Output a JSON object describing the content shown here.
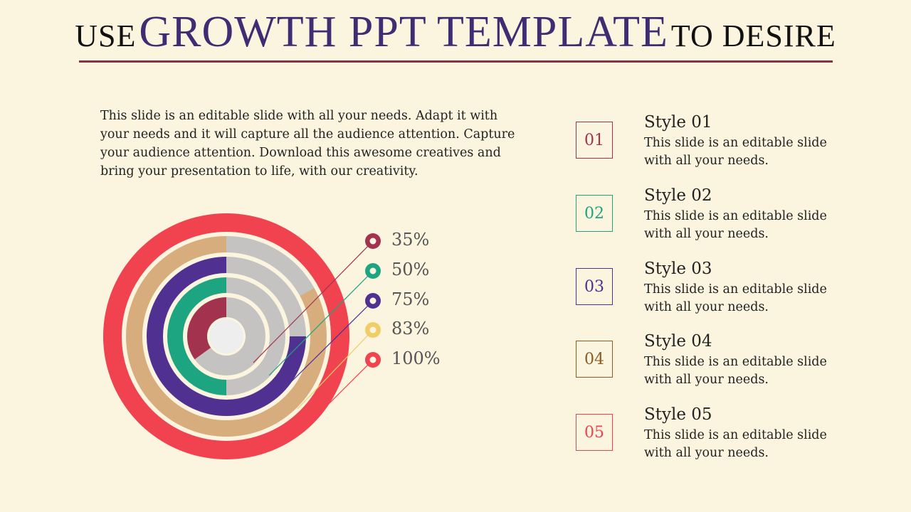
{
  "header": {
    "prefix": "USE",
    "highlight": "GROWTH PPT TEMPLATE",
    "suffix": "TO DESIRE"
  },
  "intro": "This slide is an editable slide with all your needs. Adapt it with your needs and it will capture all the audience attention. Capture your audience attention. Download this awesome creatives and bring your presentation to life, with our creativity.",
  "chart_data": {
    "type": "radial-bar",
    "series": [
      {
        "name": "35%",
        "value": 35,
        "color": "#a3324f"
      },
      {
        "name": "50%",
        "value": 50,
        "color": "#1da582"
      },
      {
        "name": "75%",
        "value": 75,
        "color": "#503091"
      },
      {
        "name": "83%",
        "value": 83,
        "color": "#f0cd68"
      },
      {
        "name": "100%",
        "value": 100,
        "color": "#f1424f"
      }
    ],
    "arc_colors": [
      "#a3324f",
      "#1da582",
      "#503091",
      "#d8ad7d",
      "#f1424f"
    ],
    "track_color": "#c4c3c1"
  },
  "styles": [
    {
      "num": "01",
      "title": "Style 01",
      "desc": "This slide is an editable slide with all your needs.",
      "color": "#a3324f"
    },
    {
      "num": "02",
      "title": "Style 02",
      "desc": "This slide is an editable slide with all your needs.",
      "color": "#1da582"
    },
    {
      "num": "03",
      "title": "Style 03",
      "desc": "This slide is an editable slide with all your needs.",
      "color": "#503091"
    },
    {
      "num": "04",
      "title": "Style 04",
      "desc": "This slide is an editable slide with all your needs.",
      "color": "#8c5b22"
    },
    {
      "num": "05",
      "title": "Style 05",
      "desc": "This slide is an editable slide with all your needs.",
      "color": "#f1424f"
    }
  ]
}
